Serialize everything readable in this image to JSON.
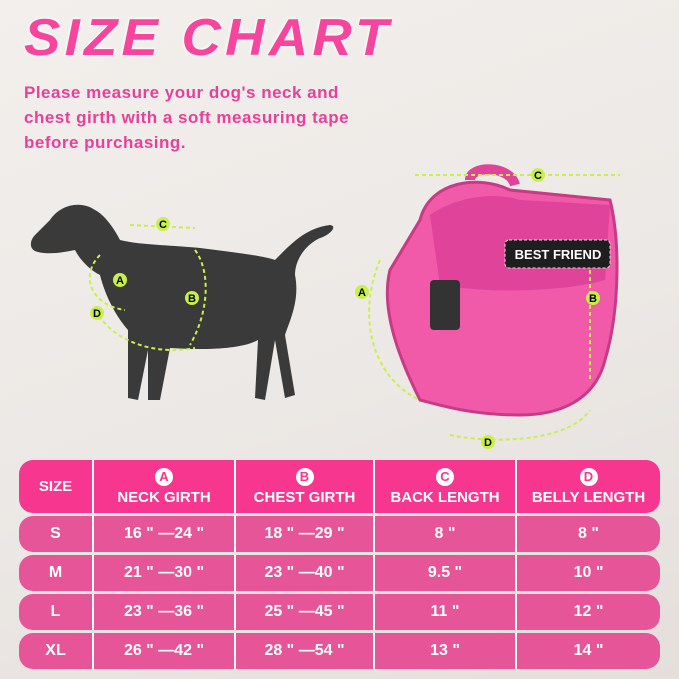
{
  "title": "SIZE CHART",
  "subtitle": "Please measure your dog's neck and chest girth with a soft measuring tape before purchasing.",
  "diagram": {
    "labels": [
      "A",
      "B",
      "C",
      "D"
    ],
    "patch": "BEST FRIEND",
    "accent": "#c8f04a"
  },
  "colors": {
    "brand": "#f7449c",
    "header": "#f7378f",
    "row": "#e65597"
  },
  "table": {
    "headers": [
      {
        "letter": "",
        "label": "SIZE"
      },
      {
        "letter": "A",
        "label": "NECK GIRTH"
      },
      {
        "letter": "B",
        "label": "CHEST GIRTH"
      },
      {
        "letter": "C",
        "label": "BACK LENGTH"
      },
      {
        "letter": "D",
        "label": "BELLY LENGTH"
      }
    ],
    "rows": [
      [
        "S",
        "16 \" —24 \"",
        "18 \" —29 \"",
        "8 \"",
        "8 \""
      ],
      [
        "M",
        "21 \" —30 \"",
        "23 \" —40 \"",
        "9.5 \"",
        "10 \""
      ],
      [
        "L",
        "23 \" —36 \"",
        "25 \" —45 \"",
        "11 \"",
        "12 \""
      ],
      [
        "XL",
        "26 \" —42 \"",
        "28 \" —54 \"",
        "13 \"",
        "14 \""
      ]
    ]
  }
}
